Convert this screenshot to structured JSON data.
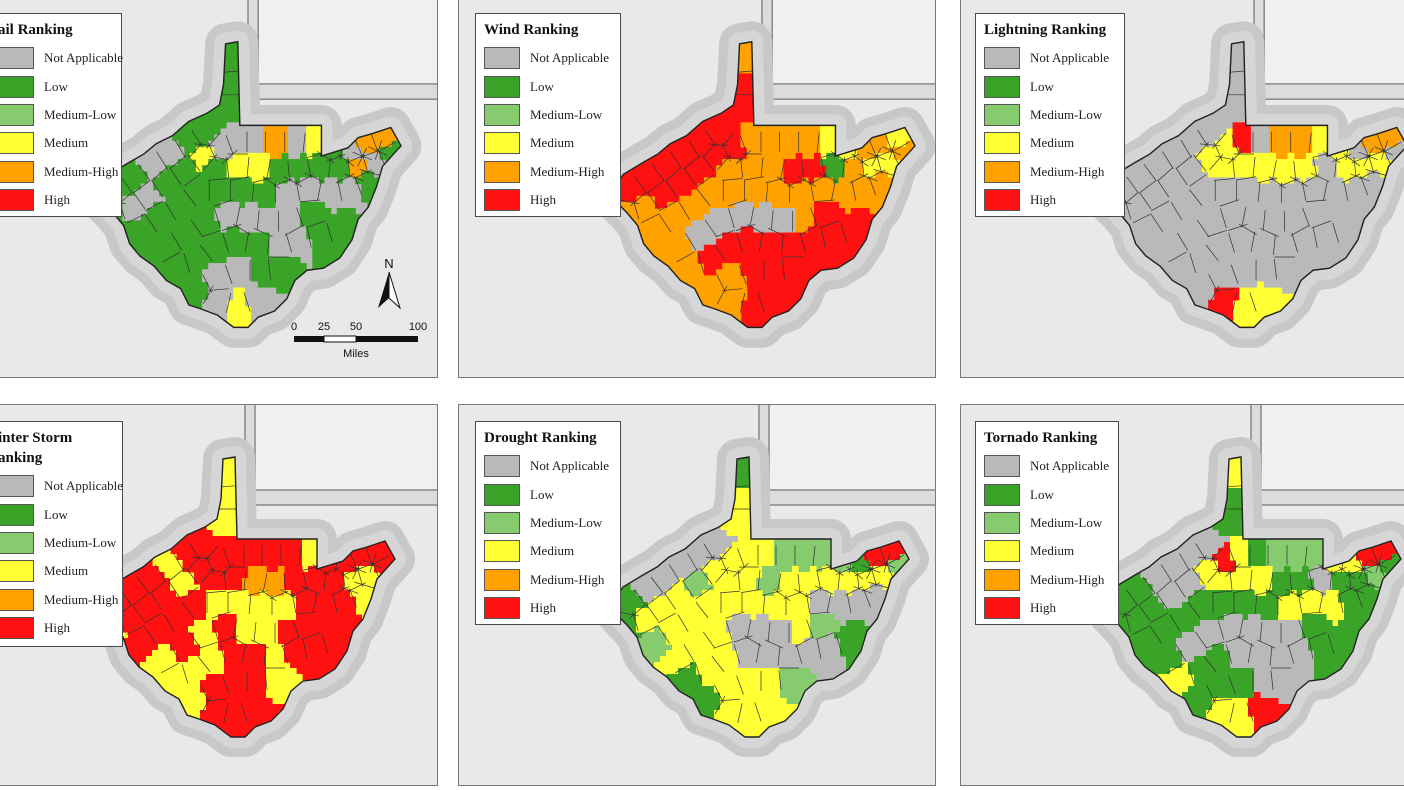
{
  "colors": {
    "Not Applicable": "#b9b9b9",
    "Low": "#3aa428",
    "Medium-Low": "#86cc6f",
    "Medium": "#ffff33",
    "Medium-High": "#ffa200",
    "High": "#ff1111",
    "background": "#e9e9e9",
    "outside_state": "#d7d7d7",
    "border_line": "#444444"
  },
  "legend_classes": [
    "Not Applicable",
    "Low",
    "Medium-Low",
    "Medium",
    "Medium-High",
    "High"
  ],
  "panels": [
    {
      "id": "hail",
      "title": "ail Ranking",
      "classes": [
        "Not Applicable",
        "Low",
        "Medium-Low",
        "Medium",
        "Medium-High",
        "High"
      ]
    },
    {
      "id": "wind",
      "title": "Wind Ranking",
      "classes": [
        "Not Applicable",
        "Low",
        "Medium-Low",
        "Medium",
        "Medium-High",
        "High"
      ]
    },
    {
      "id": "lightning",
      "title": "Lightning Ranking",
      "classes": [
        "Not Applicable",
        "Low",
        "Medium-Low",
        "Medium",
        "Medium-High",
        "High"
      ]
    },
    {
      "id": "winter",
      "title": "inter Storm\nanking",
      "classes": [
        "Not Applicable",
        "Low",
        "Medium-Low",
        "Medium",
        "Medium-High",
        "High"
      ]
    },
    {
      "id": "drought",
      "title": "Drought Ranking",
      "classes": [
        "Not Applicable",
        "Low",
        "Medium-Low",
        "Medium",
        "Medium-High",
        "High"
      ]
    },
    {
      "id": "tornado",
      "title": "Tornado Ranking",
      "classes": [
        "Not Applicable",
        "Low",
        "Medium-Low",
        "Medium",
        "Medium-High",
        "High"
      ]
    }
  ],
  "north_arrow": {
    "label": "N"
  },
  "scale_bar": {
    "ticks": [
      "0",
      "25",
      "50",
      "100"
    ],
    "unit": "Miles"
  },
  "county_rankings": {
    "hail": [
      "Low",
      "Low",
      "Low",
      "Low",
      "Low",
      "Not Applicable",
      "Not Applicable",
      "Low",
      "Low",
      "Low",
      "Not Applicable",
      "Not Applicable",
      "Low",
      "Low",
      "Medium",
      "Not Applicable",
      "Not Applicable",
      "Not Applicable",
      "Medium-High",
      "Not Applicable",
      "Medium",
      "Low",
      "Not Applicable",
      "Medium-High",
      "Medium-High",
      "Low",
      "Medium",
      "Medium",
      "Low",
      "Low",
      "Low",
      "Low",
      "Medium-High",
      "Not Applicable",
      "Low",
      "Low",
      "Low",
      "Low",
      "Low",
      "Low",
      "Low",
      "Low",
      "Not Applicable",
      "Not Applicable",
      "Not Applicable",
      "Not Applicable",
      "Low",
      "Low",
      "Low",
      "Low",
      "Not Applicable",
      "Not Applicable",
      "Not Applicable",
      "Not Applicable",
      "Low"
    ],
    "wind": [
      "Medium-High",
      "High",
      "High",
      "High",
      "High",
      "High",
      "High",
      "High",
      "High",
      "Medium-High",
      "Medium-High",
      "High",
      "High",
      "High",
      "High",
      "High",
      "Medium-High",
      "Medium-High",
      "Medium-High",
      "Medium-High",
      "Medium",
      "Medium",
      "Medium-High",
      "Medium-High",
      "Medium",
      "Medium-High",
      "Medium-High",
      "Medium-High",
      "High",
      "High",
      "Low",
      "Medium-High",
      "Medium",
      "Medium",
      "Medium-High",
      "Medium-High",
      "Medium-High",
      "Medium-High",
      "Medium-High",
      "Medium-High",
      "Medium-High",
      "Medium-High",
      "Medium-High",
      "Medium-High",
      "Medium-High",
      "Medium-High",
      "Medium-High",
      "Medium-High",
      "Not Applicable",
      "Not Applicable",
      "Not Applicable",
      "Not Applicable",
      "Not Applicable",
      "Medium-High",
      "High"
    ],
    "lightning": [
      "Not Applicable",
      "Not Applicable",
      "Not Applicable",
      "Not Applicable",
      "Not Applicable",
      "Not Applicable",
      "Not Applicable",
      "Not Applicable",
      "Not Applicable",
      "Not Applicable",
      "Not Applicable",
      "Not Applicable",
      "Not Applicable",
      "Not Applicable",
      "Medium",
      "Medium",
      "High",
      "Not Applicable",
      "Medium-High",
      "Medium-High",
      "Medium",
      "Medium",
      "Not Applicable",
      "Medium-High",
      "Medium-High",
      "Medium",
      "Medium",
      "Medium",
      "Medium",
      "Medium",
      "Not Applicable",
      "Medium",
      "Medium",
      "Medium",
      "Not Applicable",
      "Not Applicable",
      "Not Applicable",
      "Not Applicable",
      "Not Applicable",
      "Not Applicable",
      "Not Applicable",
      "Not Applicable",
      "Not Applicable",
      "Not Applicable",
      "Not Applicable",
      "Not Applicable",
      "Not Applicable",
      "Not Applicable",
      "Not Applicable",
      "Not Applicable",
      "Not Applicable",
      "Not Applicable",
      "Not Applicable",
      "Not Applicable",
      "Not Applicable"
    ],
    "winter": [
      "Medium",
      "Medium",
      "Medium",
      "High",
      "High",
      "Medium",
      "High",
      "High",
      "High",
      "Medium",
      "High",
      "High",
      "High",
      "Medium",
      "High",
      "High",
      "High",
      "High",
      "High",
      "High",
      "Medium",
      "High",
      "High",
      "High",
      "High",
      "High",
      "High",
      "Medium-High",
      "Medium-High",
      "High",
      "High",
      "High",
      "Medium",
      "Medium",
      "High",
      "High",
      "High",
      "High",
      "High",
      "Medium",
      "Medium",
      "Medium",
      "Medium",
      "High",
      "High",
      "High",
      "Medium",
      "Medium",
      "High",
      "Medium",
      "High",
      "Medium",
      "Medium",
      "High",
      "High"
    ],
    "drought": [
      "Low",
      "Medium",
      "Medium",
      "Not Applicable",
      "Not Applicable",
      "Not Applicable",
      "Not Applicable",
      "Not Applicable",
      "Low",
      "Low",
      "Medium",
      "Medium",
      "Medium",
      "Medium-Low",
      "Medium",
      "Medium",
      "Medium",
      "Medium",
      "Medium-Low",
      "Medium-Low",
      "Medium-Low",
      "Medium-Low",
      "Low",
      "High",
      "High",
      "Medium",
      "Medium",
      "Medium-Low",
      "Medium",
      "Medium",
      "Medium",
      "Medium",
      "Medium",
      "Medium",
      "Medium-Low",
      "Medium-Low",
      "Medium",
      "Medium",
      "Medium",
      "Medium",
      "Medium",
      "Medium",
      "Medium",
      "Not Applicable",
      "Not Applicable",
      "Not Applicable",
      "Not Applicable",
      "Medium",
      "Medium",
      "Medium",
      "Not Applicable",
      "Not Applicable",
      "Not Applicable",
      "Medium",
      "Medium-Low"
    ],
    "tornado": [
      "Medium",
      "Low",
      "Low",
      "Not Applicable",
      "Not Applicable",
      "Not Applicable",
      "Not Applicable",
      "Low",
      "Low",
      "Low",
      "Low",
      "Low",
      "Not Applicable",
      "Not Applicable",
      "Medium",
      "High",
      "Medium",
      "Low",
      "Medium-Low",
      "Medium-Low",
      "Medium-Low",
      "Medium",
      "Medium",
      "High",
      "High",
      "Medium",
      "Medium",
      "Medium",
      "Low",
      "Low",
      "Not Applicable",
      "Low",
      "Low",
      "Medium-Low",
      "Low",
      "Low",
      "Low",
      "Low",
      "Low",
      "Low",
      "Low",
      "Low",
      "Medium",
      "Medium",
      "Medium",
      "Low",
      "Low",
      "Low",
      "Not Applicable",
      "Not Applicable",
      "Not Applicable",
      "Not Applicable",
      "Not Applicable",
      "Not Applicable",
      "Low"
    ]
  }
}
